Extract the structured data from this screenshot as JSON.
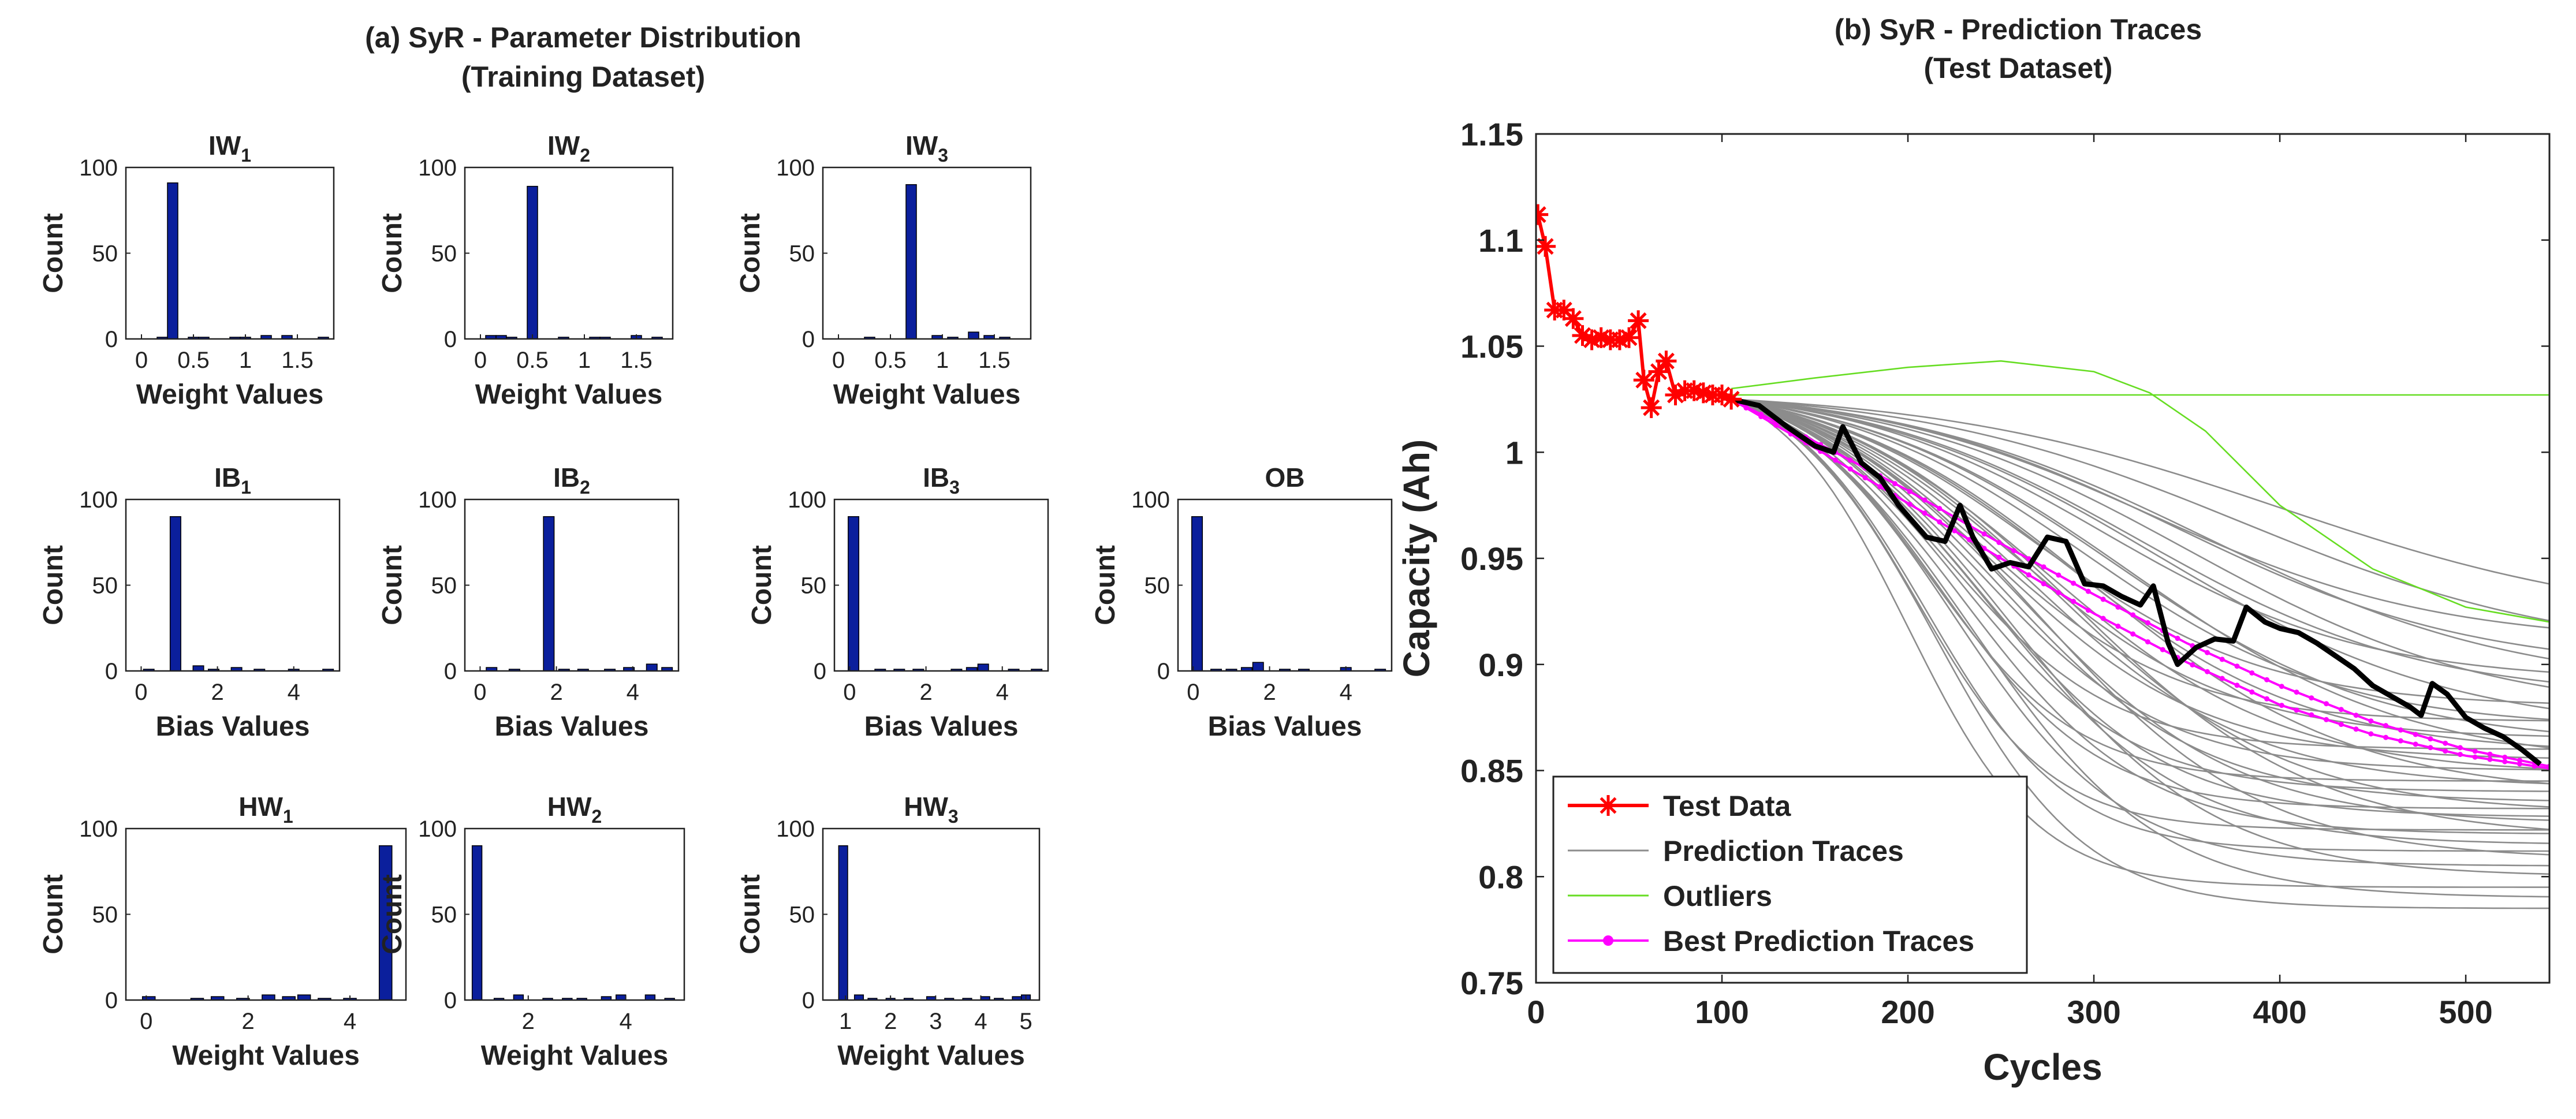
{
  "left_panel": {
    "title_line1": "(a) SyR - Parameter Distribution",
    "title_line2": "(Training Dataset)"
  },
  "right_panel": {
    "title_line1": "(b) SyR - Prediction Traces",
    "title_line2": "(Test Dataset)"
  },
  "colors": {
    "bar": "#0b1f9c",
    "test_data": "#ff0000",
    "prediction_traces": "#8c8c8c",
    "outliers": "#66dd22",
    "best_prediction": "#ff00ff",
    "ground_truth": "#000000"
  },
  "chart_data": [
    {
      "type": "bar",
      "id": "IW1",
      "title": "IW",
      "subscript": "1",
      "xlabel": "Weight Values",
      "ylabel": "Count",
      "xlim": [
        -0.15,
        1.85
      ],
      "ylim": [
        0,
        100
      ],
      "xticks": [
        0,
        0.5,
        1,
        1.5
      ],
      "xticklabels": [
        "0",
        "0.5",
        "1",
        "1.5"
      ],
      "yticks": [
        0,
        50,
        100
      ],
      "yticklabels": [
        "0",
        "50",
        "100"
      ],
      "bar_width": 0.1,
      "x": [
        0.2,
        0.3,
        0.5,
        0.6,
        0.9,
        1.0,
        1.2,
        1.4,
        1.75
      ],
      "values": [
        1,
        91,
        1,
        1,
        1,
        1,
        2,
        2,
        1
      ]
    },
    {
      "type": "bar",
      "id": "IW2",
      "title": "IW",
      "subscript": "2",
      "xlabel": "Weight Values",
      "ylabel": "Count",
      "xlim": [
        -0.15,
        1.85
      ],
      "ylim": [
        0,
        100
      ],
      "xticks": [
        0,
        0.5,
        1,
        1.5
      ],
      "xticklabels": [
        "0",
        "0.5",
        "1",
        "1.5"
      ],
      "yticks": [
        0,
        50,
        100
      ],
      "yticklabels": [
        "0",
        "50",
        "100"
      ],
      "bar_width": 0.1,
      "x": [
        0.1,
        0.2,
        0.3,
        0.5,
        0.8,
        1.1,
        1.2,
        1.5,
        1.7
      ],
      "values": [
        2,
        2,
        1,
        89,
        1,
        1,
        1,
        2,
        1
      ]
    },
    {
      "type": "bar",
      "id": "IW3",
      "title": "IW",
      "subscript": "3",
      "xlabel": "Weight Values",
      "ylabel": "Count",
      "xlim": [
        -0.15,
        1.85
      ],
      "ylim": [
        0,
        100
      ],
      "xticks": [
        0,
        0.5,
        1,
        1.5
      ],
      "xticklabels": [
        "0",
        "0.5",
        "1",
        "1.5"
      ],
      "yticks": [
        0,
        50,
        100
      ],
      "yticklabels": [
        "0",
        "50",
        "100"
      ],
      "bar_width": 0.1,
      "x": [
        0.3,
        0.7,
        0.95,
        1.1,
        1.3,
        1.45,
        1.6
      ],
      "values": [
        1,
        90,
        2,
        1,
        4,
        2,
        1
      ]
    },
    {
      "type": "bar",
      "id": "IB1",
      "title": "IB",
      "subscript": "1",
      "xlabel": "Bias Values",
      "ylabel": "Count",
      "xlim": [
        -0.4,
        5.2
      ],
      "ylim": [
        0,
        100
      ],
      "xticks": [
        0,
        2,
        4
      ],
      "xticklabels": [
        "0",
        "2",
        "4"
      ],
      "yticks": [
        0,
        50,
        100
      ],
      "yticklabels": [
        "0",
        "50",
        "100"
      ],
      "bar_width": 0.28,
      "x": [
        0.2,
        0.9,
        1.5,
        1.9,
        2.5,
        3.1,
        4.0,
        4.9
      ],
      "values": [
        1,
        90,
        3,
        1,
        2,
        1,
        1,
        1
      ]
    },
    {
      "type": "bar",
      "id": "IB2",
      "title": "IB",
      "subscript": "2",
      "xlabel": "Bias Values",
      "ylabel": "Count",
      "xlim": [
        -0.4,
        5.2
      ],
      "ylim": [
        0,
        100
      ],
      "xticks": [
        0,
        2,
        4
      ],
      "xticklabels": [
        "0",
        "2",
        "4"
      ],
      "yticks": [
        0,
        50,
        100
      ],
      "yticklabels": [
        "0",
        "50",
        "100"
      ],
      "bar_width": 0.28,
      "x": [
        0.3,
        0.9,
        1.8,
        2.2,
        2.7,
        3.4,
        3.9,
        4.5,
        4.9
      ],
      "values": [
        2,
        1,
        90,
        1,
        1,
        1,
        2,
        4,
        2
      ]
    },
    {
      "type": "bar",
      "id": "IB3",
      "title": "IB",
      "subscript": "3",
      "xlabel": "Bias Values",
      "ylabel": "Count",
      "xlim": [
        -0.4,
        5.2
      ],
      "ylim": [
        0,
        100
      ],
      "xticks": [
        0,
        2,
        4
      ],
      "xticklabels": [
        "0",
        "2",
        "4"
      ],
      "yticks": [
        0,
        50,
        100
      ],
      "yticklabels": [
        "0",
        "50",
        "100"
      ],
      "bar_width": 0.28,
      "x": [
        0.1,
        0.8,
        1.3,
        1.8,
        2.8,
        3.2,
        3.5,
        4.3,
        4.9
      ],
      "values": [
        90,
        1,
        1,
        1,
        1,
        2,
        4,
        1,
        1
      ]
    },
    {
      "type": "bar",
      "id": "OB",
      "title": "OB",
      "subscript": "",
      "xlabel": "Bias Values",
      "ylabel": "Count",
      "xlim": [
        -0.4,
        5.2
      ],
      "ylim": [
        0,
        100
      ],
      "xticks": [
        0,
        2,
        4
      ],
      "xticklabels": [
        "0",
        "2",
        "4"
      ],
      "yticks": [
        0,
        50,
        100
      ],
      "yticklabels": [
        "0",
        "50",
        "100"
      ],
      "bar_width": 0.28,
      "x": [
        0.1,
        0.6,
        1.0,
        1.4,
        1.7,
        2.4,
        2.9,
        4.0,
        4.9
      ],
      "values": [
        90,
        1,
        1,
        2,
        5,
        1,
        1,
        2,
        1
      ]
    },
    {
      "type": "bar",
      "id": "HW1",
      "title": "HW",
      "subscript": "1",
      "xlabel": "Weight Values",
      "ylabel": "Count",
      "xlim": [
        -0.4,
        5.1
      ],
      "ylim": [
        0,
        100
      ],
      "xticks": [
        0,
        2,
        4
      ],
      "xticklabels": [
        "0",
        "2",
        "4"
      ],
      "yticks": [
        0,
        50,
        100
      ],
      "yticklabels": [
        "0",
        "50",
        "100"
      ],
      "bar_width": 0.25,
      "x": [
        0.05,
        1.0,
        1.4,
        1.9,
        2.4,
        2.8,
        3.1,
        3.5,
        4.0,
        4.7
      ],
      "values": [
        2,
        1,
        2,
        1,
        3,
        2,
        3,
        1,
        1,
        90
      ]
    },
    {
      "type": "bar",
      "id": "HW2",
      "title": "HW",
      "subscript": "2",
      "xlabel": "Weight Values",
      "ylabel": "Count",
      "xlim": [
        0.7,
        5.2
      ],
      "ylim": [
        0,
        100
      ],
      "xticks": [
        2,
        4
      ],
      "xticklabels": [
        "2",
        "4"
      ],
      "yticks": [
        0,
        50,
        100
      ],
      "yticklabels": [
        "0",
        "50",
        "100"
      ],
      "bar_width": 0.2,
      "x": [
        0.95,
        1.4,
        1.8,
        2.4,
        2.8,
        3.1,
        3.6,
        3.9,
        4.5,
        4.9
      ],
      "values": [
        90,
        1,
        3,
        1,
        1,
        1,
        2,
        3,
        3,
        1
      ]
    },
    {
      "type": "bar",
      "id": "HW3",
      "title": "HW",
      "subscript": "3",
      "xlabel": "Weight Values",
      "ylabel": "Count",
      "xlim": [
        0.5,
        5.3
      ],
      "ylim": [
        0,
        100
      ],
      "xticks": [
        1,
        2,
        3,
        4,
        5
      ],
      "xticklabels": [
        "1",
        "2",
        "3",
        "4",
        "5"
      ],
      "yticks": [
        0,
        50,
        100
      ],
      "yticklabels": [
        "0",
        "50",
        "100"
      ],
      "bar_width": 0.2,
      "x": [
        0.95,
        1.3,
        1.6,
        2.0,
        2.4,
        2.9,
        3.3,
        3.7,
        4.1,
        4.4,
        4.8,
        5.0
      ],
      "values": [
        90,
        3,
        1,
        1,
        1,
        2,
        1,
        1,
        2,
        1,
        2,
        3
      ]
    },
    {
      "type": "line",
      "id": "traces",
      "xlabel": "Cycles",
      "ylabel": "Capacity (Ah)",
      "xlim": [
        0,
        545
      ],
      "ylim": [
        0.75,
        1.15
      ],
      "xticks": [
        0,
        100,
        200,
        300,
        400,
        500
      ],
      "xticklabels": [
        "0",
        "100",
        "200",
        "300",
        "400",
        "500"
      ],
      "yticks": [
        0.75,
        0.8,
        0.85,
        0.9,
        0.95,
        1,
        1.05,
        1.1,
        1.15
      ],
      "yticklabels": [
        "0.75",
        "0.8",
        "0.85",
        "0.9",
        "0.95",
        "1",
        "1.05",
        "1.1",
        "1.15"
      ],
      "legend_position": "bottom-left",
      "legend": [
        "Test Data",
        "Prediction Traces",
        "Outliers",
        "Best Prediction Traces"
      ],
      "test_data": {
        "x": [
          1,
          5,
          10,
          15,
          20,
          25,
          30,
          35,
          40,
          45,
          50,
          55,
          58,
          62,
          66,
          70,
          75,
          80,
          85,
          90,
          95,
          100,
          105
        ],
        "y": [
          1.112,
          1.097,
          1.067,
          1.067,
          1.063,
          1.055,
          1.053,
          1.054,
          1.053,
          1.053,
          1.054,
          1.062,
          1.034,
          1.021,
          1.038,
          1.043,
          1.027,
          1.029,
          1.029,
          1.028,
          1.027,
          1.027,
          1.025
        ]
      },
      "ground_truth": {
        "x": [
          105,
          120,
          135,
          150,
          160,
          165,
          175,
          185,
          195,
          210,
          220,
          228,
          235,
          245,
          255,
          265,
          275,
          285,
          295,
          305,
          315,
          325,
          332,
          340,
          345,
          355,
          365,
          375,
          382,
          392,
          400,
          410,
          420,
          430,
          440,
          450,
          460,
          470,
          476,
          482,
          490,
          500,
          510,
          520,
          530,
          540
        ],
        "y": [
          1.025,
          1.022,
          1.012,
          1.003,
          1.0,
          1.012,
          0.995,
          0.988,
          0.975,
          0.96,
          0.958,
          0.975,
          0.96,
          0.945,
          0.948,
          0.946,
          0.96,
          0.958,
          0.938,
          0.937,
          0.932,
          0.928,
          0.937,
          0.91,
          0.9,
          0.908,
          0.912,
          0.911,
          0.927,
          0.92,
          0.917,
          0.915,
          0.91,
          0.904,
          0.898,
          0.89,
          0.885,
          0.88,
          0.876,
          0.891,
          0.886,
          0.875,
          0.87,
          0.866,
          0.86,
          0.853
        ]
      },
      "best_prediction": [
        {
          "x": [
            105,
            150,
            200,
            250,
            300,
            350,
            400,
            450,
            500,
            545
          ],
          "y": [
            1.025,
            1.005,
            0.982,
            0.957,
            0.933,
            0.91,
            0.89,
            0.873,
            0.86,
            0.852
          ]
        },
        {
          "x": [
            105,
            150,
            200,
            250,
            300,
            350,
            400,
            450,
            500,
            545
          ],
          "y": [
            1.025,
            1.002,
            0.976,
            0.95,
            0.924,
            0.901,
            0.881,
            0.867,
            0.857,
            0.851
          ]
        }
      ],
      "outliers": [
        {
          "x": [
            105,
            150,
            200,
            250,
            300,
            330,
            360,
            400,
            450,
            500,
            545
          ],
          "y": [
            1.03,
            1.035,
            1.04,
            1.043,
            1.038,
            1.028,
            1.01,
            0.975,
            0.945,
            0.927,
            0.92
          ]
        },
        {
          "x": [
            105,
            545
          ],
          "y": [
            1.027,
            1.027
          ]
        }
      ],
      "prediction_traces": {
        "x_start": 105,
        "x_end": 545,
        "y_start": 1.025,
        "asymptotes": [
          0.785,
          0.79,
          0.795,
          0.8,
          0.805,
          0.808,
          0.812,
          0.815,
          0.818,
          0.82,
          0.822,
          0.825,
          0.828,
          0.83,
          0.832,
          0.835,
          0.838,
          0.84,
          0.842,
          0.845,
          0.848,
          0.85,
          0.852,
          0.855,
          0.858,
          0.86,
          0.862,
          0.865,
          0.868,
          0.87,
          0.873,
          0.876,
          0.88,
          0.884,
          0.888,
          0.892,
          0.897,
          0.903,
          0.91,
          0.918
        ],
        "midpoints": [
          215,
          235,
          200,
          255,
          225,
          270,
          210,
          245,
          290,
          230,
          205,
          260,
          240,
          280,
          218,
          250,
          300,
          228,
          265,
          212,
          275,
          238,
          320,
          248,
          285,
          222,
          310,
          258,
          335,
          295,
          242,
          350,
          268,
          325,
          360,
          305,
          345,
          380,
          330,
          400
        ],
        "widths": [
          40,
          50,
          35,
          55,
          45,
          60,
          38,
          52,
          65,
          48,
          36,
          58,
          50,
          62,
          42,
          54,
          70,
          46,
          60,
          40,
          64,
          50,
          75,
          56,
          66,
          44,
          72,
          58,
          80,
          68,
          52,
          82,
          62,
          76,
          85,
          70,
          80,
          90,
          78,
          95
        ]
      }
    }
  ]
}
